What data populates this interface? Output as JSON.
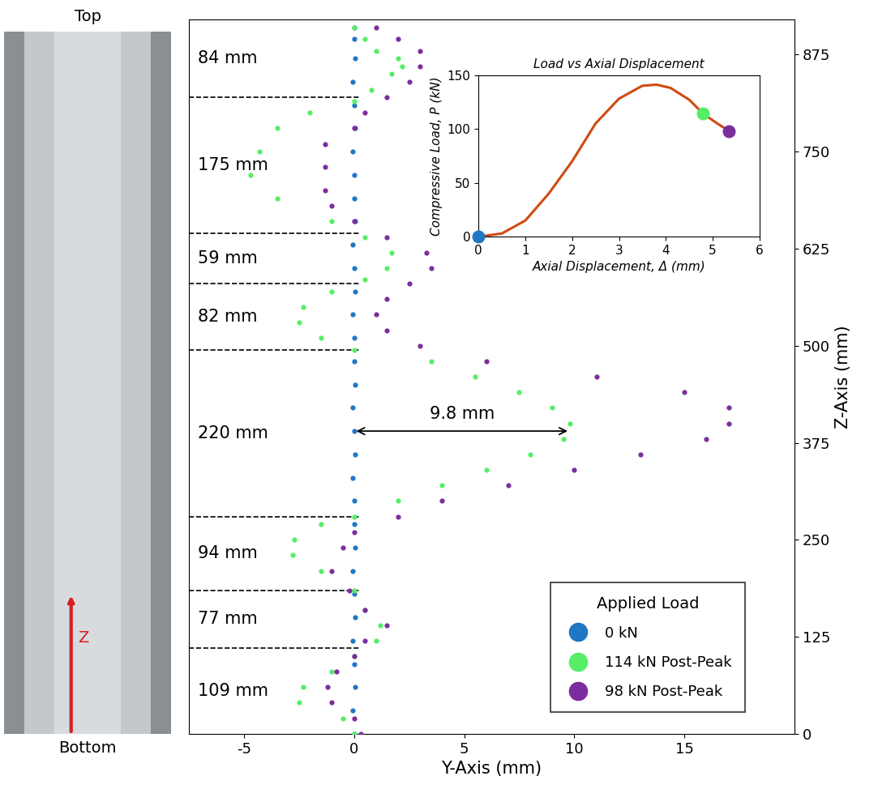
{
  "chart_data": [
    {
      "type": "scatter",
      "x_label": "Y-Axis (mm)",
      "y_label": "Z-Axis (mm)",
      "xlim": [
        -7.5,
        20
      ],
      "xticks": [
        -5,
        0,
        5,
        10,
        15
      ],
      "ylim": [
        0,
        920
      ],
      "yticks": [
        0,
        125,
        250,
        375,
        500,
        625,
        750,
        875
      ],
      "legend": "lower right",
      "legend_title": "Applied Load",
      "dividers": [
        110,
        185,
        280,
        495,
        580,
        645,
        820
      ],
      "segment_labels": [
        "109 mm",
        "77 mm",
        "94 mm",
        "220 mm",
        "82 mm",
        "59 mm",
        "175 mm",
        "84 mm"
      ],
      "annotation": {
        "text": "9.8 mm",
        "x": [
          0,
          9.8
        ],
        "y": 390
      },
      "series": [
        {
          "name": "0 kN",
          "color": "#1f77c4",
          "marker": "circle",
          "x": [
            0,
            -0.05,
            0.05,
            0,
            -0.05,
            0.05,
            0,
            -0.05,
            0.05,
            0,
            0,
            -0.05,
            0.05,
            0,
            -0.05,
            0.05,
            0,
            0,
            -0.05,
            0.05,
            0,
            -0.05,
            0.05,
            0,
            0,
            -0.05,
            0.05,
            0,
            -0.05,
            0.05,
            0,
            0
          ],
          "y": [
            0,
            30,
            60,
            90,
            120,
            150,
            180,
            210,
            240,
            270,
            300,
            330,
            360,
            390,
            420,
            450,
            480,
            510,
            540,
            570,
            600,
            630,
            660,
            690,
            720,
            750,
            780,
            810,
            840,
            870,
            895,
            910
          ]
        },
        {
          "name": "114 kN Post-Peak",
          "color": "#55ee66",
          "marker": "circle",
          "x": [
            0,
            -0.5,
            -2.5,
            -2.3,
            -1,
            0,
            1,
            1.2,
            0.5,
            0,
            -1.5,
            -2.8,
            -2.7,
            -1.5,
            0,
            2,
            4,
            6,
            8,
            9.5,
            9.8,
            9,
            7.5,
            5.5,
            3.5,
            0,
            -1.5,
            -2.5,
            -2.3,
            -1,
            0.5,
            1.5,
            1.7,
            0.5,
            -1,
            -3.5,
            -4.7,
            -4.3,
            -3.5,
            -2,
            0,
            0.8,
            1.7,
            2.2,
            2,
            1,
            0.5,
            0
          ],
          "y": [
            0,
            20,
            40,
            60,
            80,
            100,
            120,
            140,
            160,
            185,
            210,
            230,
            250,
            270,
            280,
            300,
            320,
            340,
            360,
            380,
            400,
            420,
            440,
            460,
            480,
            495,
            510,
            530,
            550,
            570,
            585,
            600,
            620,
            640,
            660,
            690,
            720,
            750,
            780,
            800,
            815,
            830,
            850,
            860,
            870,
            880,
            895,
            910
          ]
        },
        {
          "name": "98 kN Post-Peak",
          "color": "#7b2d9e",
          "marker": "circle",
          "x": [
            0.3,
            0,
            -1,
            -1.2,
            -0.8,
            0,
            0.5,
            1.5,
            0.5,
            -0.2,
            -1,
            -0.5,
            0,
            2,
            4,
            7,
            10,
            13,
            16,
            17,
            17,
            15,
            11,
            6,
            3,
            1.5,
            1,
            1.5,
            2.5,
            3.5,
            3.3,
            1.5,
            0,
            -1,
            -1.3,
            -1.3,
            -1.3,
            0,
            0.5,
            1.5,
            2.5,
            3,
            3,
            2,
            1
          ],
          "y": [
            0,
            20,
            40,
            60,
            80,
            100,
            120,
            140,
            160,
            185,
            210,
            240,
            260,
            280,
            300,
            320,
            340,
            360,
            380,
            400,
            420,
            440,
            460,
            480,
            500,
            520,
            540,
            560,
            580,
            600,
            620,
            640,
            660,
            680,
            700,
            730,
            760,
            780,
            800,
            820,
            840,
            860,
            880,
            895,
            910
          ]
        }
      ]
    },
    {
      "type": "line",
      "title": "Load vs Axial Displacement",
      "x_label": "Axial Displacement, Δ (mm)",
      "y_label": "Compressive Load, P (kN)",
      "xlim": [
        0,
        6
      ],
      "xticks": [
        0,
        1,
        2,
        3,
        4,
        5,
        6
      ],
      "ylim": [
        0,
        150
      ],
      "yticks": [
        0,
        50,
        100,
        150
      ],
      "color": "#d04a10",
      "x": [
        0,
        0.5,
        1,
        1.5,
        2,
        2.5,
        3,
        3.5,
        3.8,
        4.1,
        4.5,
        4.8,
        5.1,
        5.35
      ],
      "y": [
        0,
        3,
        15,
        40,
        70,
        105,
        128,
        140,
        141,
        138,
        127,
        114,
        105,
        98
      ],
      "points": [
        {
          "x": 0,
          "y": 0,
          "color": "#1f77c4"
        },
        {
          "x": 4.8,
          "y": 114,
          "color": "#55ee66"
        },
        {
          "x": 5.35,
          "y": 98,
          "color": "#7b2d9e"
        }
      ]
    }
  ],
  "photo": {
    "top_label": "Top",
    "bottom_label": "Bottom",
    "axis_label": "Z"
  }
}
